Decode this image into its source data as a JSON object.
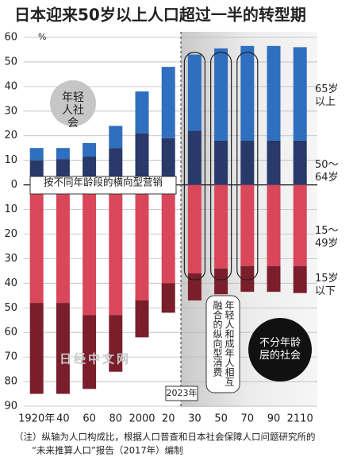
{
  "chart_data": {
    "type": "bar",
    "title": "日本迎来50岁以上人口超过一半的转型期",
    "y_unit": "%",
    "categories": [
      "1920年",
      "40",
      "60",
      "80",
      "2000",
      "20",
      "30",
      "50",
      "70",
      "90",
      "2110"
    ],
    "series": [
      {
        "name": "50～\n64岁",
        "color": "#28396a",
        "values": [
          10,
          10.5,
          11.5,
          15,
          21,
          19,
          22,
          18,
          18,
          18,
          18
        ]
      },
      {
        "name": "65岁\n以上",
        "color": "#2f6fbf",
        "values": [
          5,
          4.5,
          5.5,
          9,
          17,
          29,
          31,
          37.5,
          38.5,
          38.5,
          38
        ]
      },
      {
        "name": "15～\n49岁",
        "color": "#d9475a",
        "values": [
          -48,
          -48,
          -53,
          -53,
          -47,
          -40,
          -36,
          -34,
          -33,
          -33,
          -33
        ]
      },
      {
        "name": "15岁\n以下",
        "color": "#7b1e2b",
        "values": [
          -37,
          -37,
          -30,
          -23,
          -15,
          -12,
          -11,
          -10.5,
          -10.5,
          -10.5,
          -11
        ]
      }
    ],
    "ylim": [
      -90,
      60
    ],
    "yticks": [
      60,
      50,
      40,
      30,
      20,
      10,
      0,
      {
        "value": -10,
        "label": "10"
      },
      {
        "value": -20,
        "label": "20"
      },
      {
        "value": -30,
        "label": "30"
      },
      {
        "value": -40,
        "label": "40"
      },
      {
        "value": -50,
        "label": "50"
      },
      {
        "value": -60,
        "label": "60"
      },
      {
        "value": -70,
        "label": "70"
      },
      {
        "value": -80,
        "label": "80"
      },
      {
        "value": -90,
        "label": "90"
      }
    ],
    "grid": true,
    "annotations": {
      "young_society": "年轻人社会",
      "ageless_society": "不分年龄层的社会",
      "horizontal_marketing": "按不同年龄段的横向型营销",
      "vertical_consumption": "年轻人和成年人相互融合的纵向型消费",
      "year_marker": "2023年",
      "watermark": "日经中文网"
    },
    "note": [
      "（注）纵轴为人口构成比，根据人口普查和日本社会保障人口问题研究所的",
      "“未来推算人口”报告（2017年）编制"
    ]
  }
}
